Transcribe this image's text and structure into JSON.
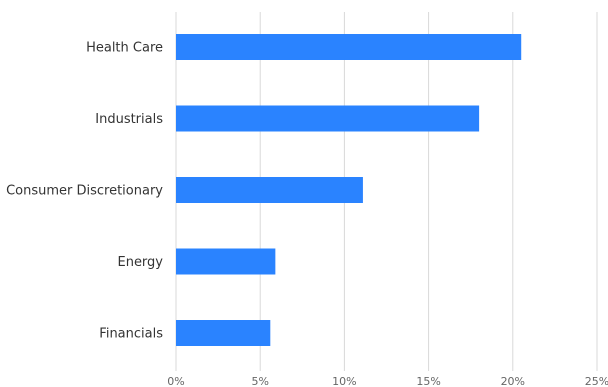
{
  "chart_data": {
    "type": "bar",
    "orientation": "horizontal",
    "title": "",
    "xlabel": "",
    "ylabel": "",
    "categories": [
      "Health Care",
      "Industrials",
      "Consumer Discretionary",
      "Energy",
      "Financials"
    ],
    "values": [
      20.5,
      18.0,
      11.1,
      5.9,
      5.6
    ],
    "xlim": [
      0,
      25
    ],
    "ticks": [
      0,
      5,
      10,
      15,
      20,
      25
    ],
    "tick_labels": [
      "0%",
      "5%",
      "10%",
      "15%",
      "20%",
      "25%"
    ],
    "grid": true,
    "legend": "none",
    "bar_color": "#2a83ff",
    "grid_color": "#d9d9d9"
  }
}
